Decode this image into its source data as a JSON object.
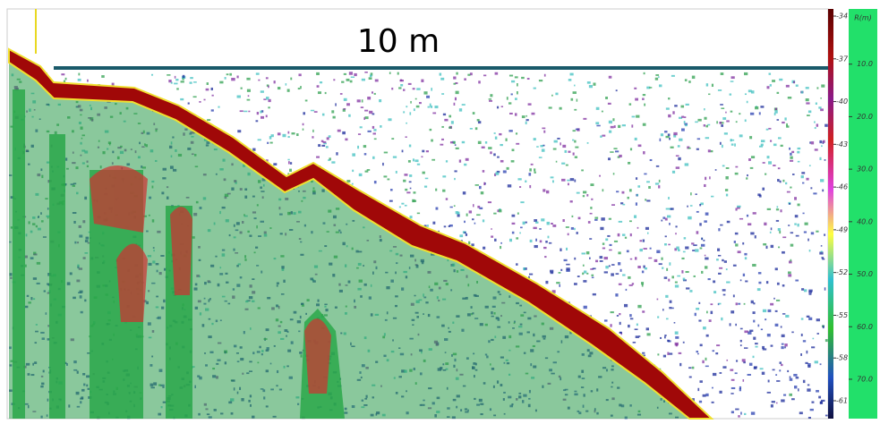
{
  "scale_bar": {
    "label": "10 m"
  },
  "color_scale": {
    "ticks": [
      -34,
      -37,
      -40,
      -43,
      -46,
      -49,
      -52,
      -55,
      -58,
      -61
    ]
  },
  "depth_axis": {
    "label": "R(m)",
    "ylim": [
      0,
      77.5
    ],
    "ticks": [
      {
        "value": 10,
        "label": "10.0"
      },
      {
        "value": 20,
        "label": "20.0"
      },
      {
        "value": 30,
        "label": "30.0"
      },
      {
        "value": 40,
        "label": "40.0"
      },
      {
        "value": 50,
        "label": "50.0"
      },
      {
        "value": 60,
        "label": "60.0"
      },
      {
        "value": 70,
        "label": "70.0"
      }
    ]
  }
}
